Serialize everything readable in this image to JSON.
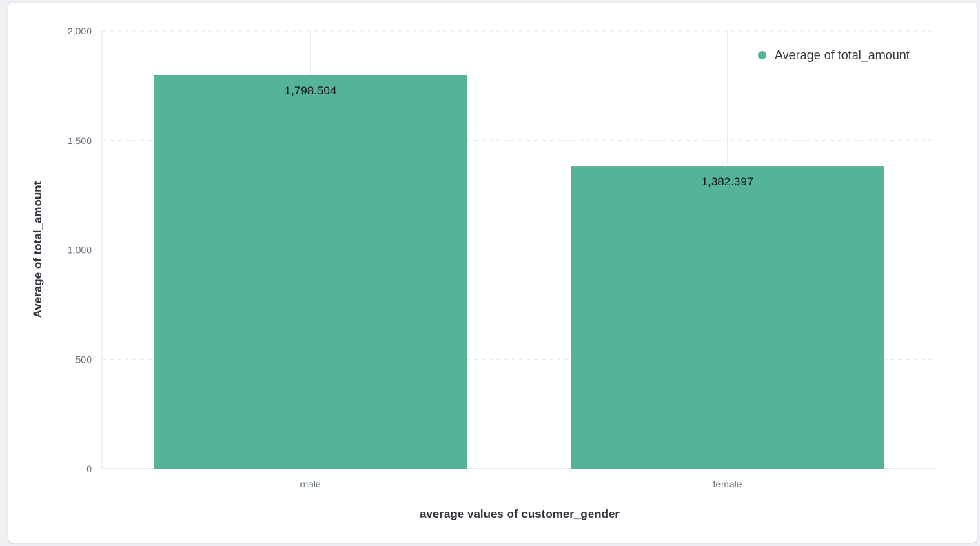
{
  "chart_data": {
    "type": "bar",
    "categories": [
      "male",
      "female"
    ],
    "series": [
      {
        "name": "Average of total_amount",
        "values": [
          1798.504,
          1382.397
        ],
        "value_labels": [
          "1,798.504",
          "1,382.397"
        ],
        "color": "#54b399"
      }
    ],
    "xlabel": "average values of customer_gender",
    "ylabel": "Average of total_amount",
    "ylim": [
      0,
      2000
    ],
    "yticks": [
      0,
      500,
      1000,
      1500,
      2000
    ],
    "ytick_labels": [
      "0",
      "500",
      "1,000",
      "1,500",
      "2,000"
    ],
    "grid": true,
    "legend_position": "top-right"
  }
}
